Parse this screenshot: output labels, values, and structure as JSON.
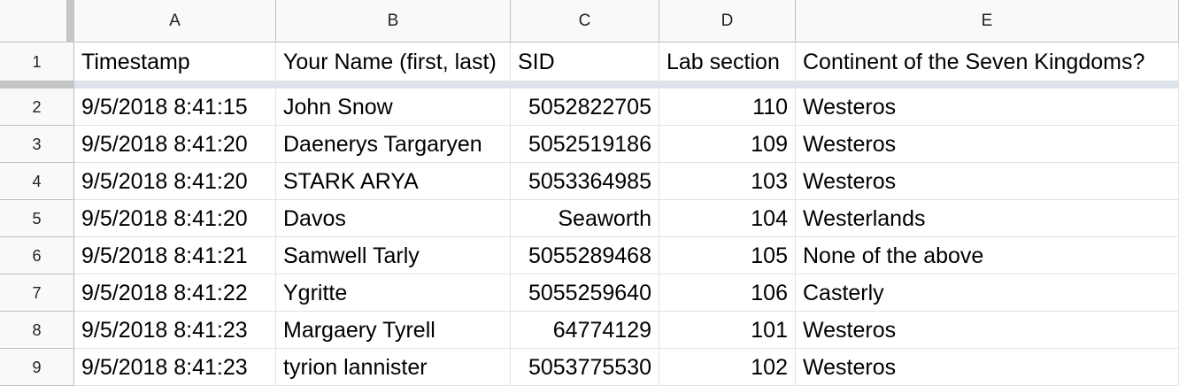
{
  "columns": [
    "A",
    "B",
    "C",
    "D",
    "E"
  ],
  "header_row": {
    "row_number": "1",
    "cells": [
      "Timestamp",
      "Your Name (first, last)",
      "SID",
      "Lab section",
      "Continent of the Seven Kingdoms?"
    ]
  },
  "rows": [
    {
      "row_number": "2",
      "cells": [
        "9/5/2018 8:41:15",
        "John Snow",
        "5052822705",
        "110",
        "Westeros"
      ]
    },
    {
      "row_number": "3",
      "cells": [
        "9/5/2018 8:41:20",
        "Daenerys Targaryen",
        "5052519186",
        "109",
        "Westeros"
      ]
    },
    {
      "row_number": "4",
      "cells": [
        "9/5/2018 8:41:20",
        "STARK ARYA",
        "5053364985",
        "103",
        "Westeros"
      ]
    },
    {
      "row_number": "5",
      "cells": [
        "9/5/2018 8:41:20",
        "Davos",
        "Seaworth",
        "104",
        "Westerlands"
      ]
    },
    {
      "row_number": "6",
      "cells": [
        "9/5/2018 8:41:21",
        "Samwell Tarly",
        "5055289468",
        "105",
        "None of the above"
      ]
    },
    {
      "row_number": "7",
      "cells": [
        "9/5/2018 8:41:22",
        "Ygritte",
        "5055259640",
        "106",
        "Casterly"
      ]
    },
    {
      "row_number": "8",
      "cells": [
        "9/5/2018 8:41:23",
        "Margaery Tyrell",
        "64774129",
        "101",
        "Westeros"
      ]
    },
    {
      "row_number": "9",
      "cells": [
        "9/5/2018 8:41:23",
        "tyrion lannister",
        "5053775530",
        "102",
        "Westeros"
      ]
    }
  ],
  "colors": {
    "header_bg": "#f8f9fa",
    "grid_line": "#e2e2e2",
    "freeze_bar": "#dde3ea"
  }
}
